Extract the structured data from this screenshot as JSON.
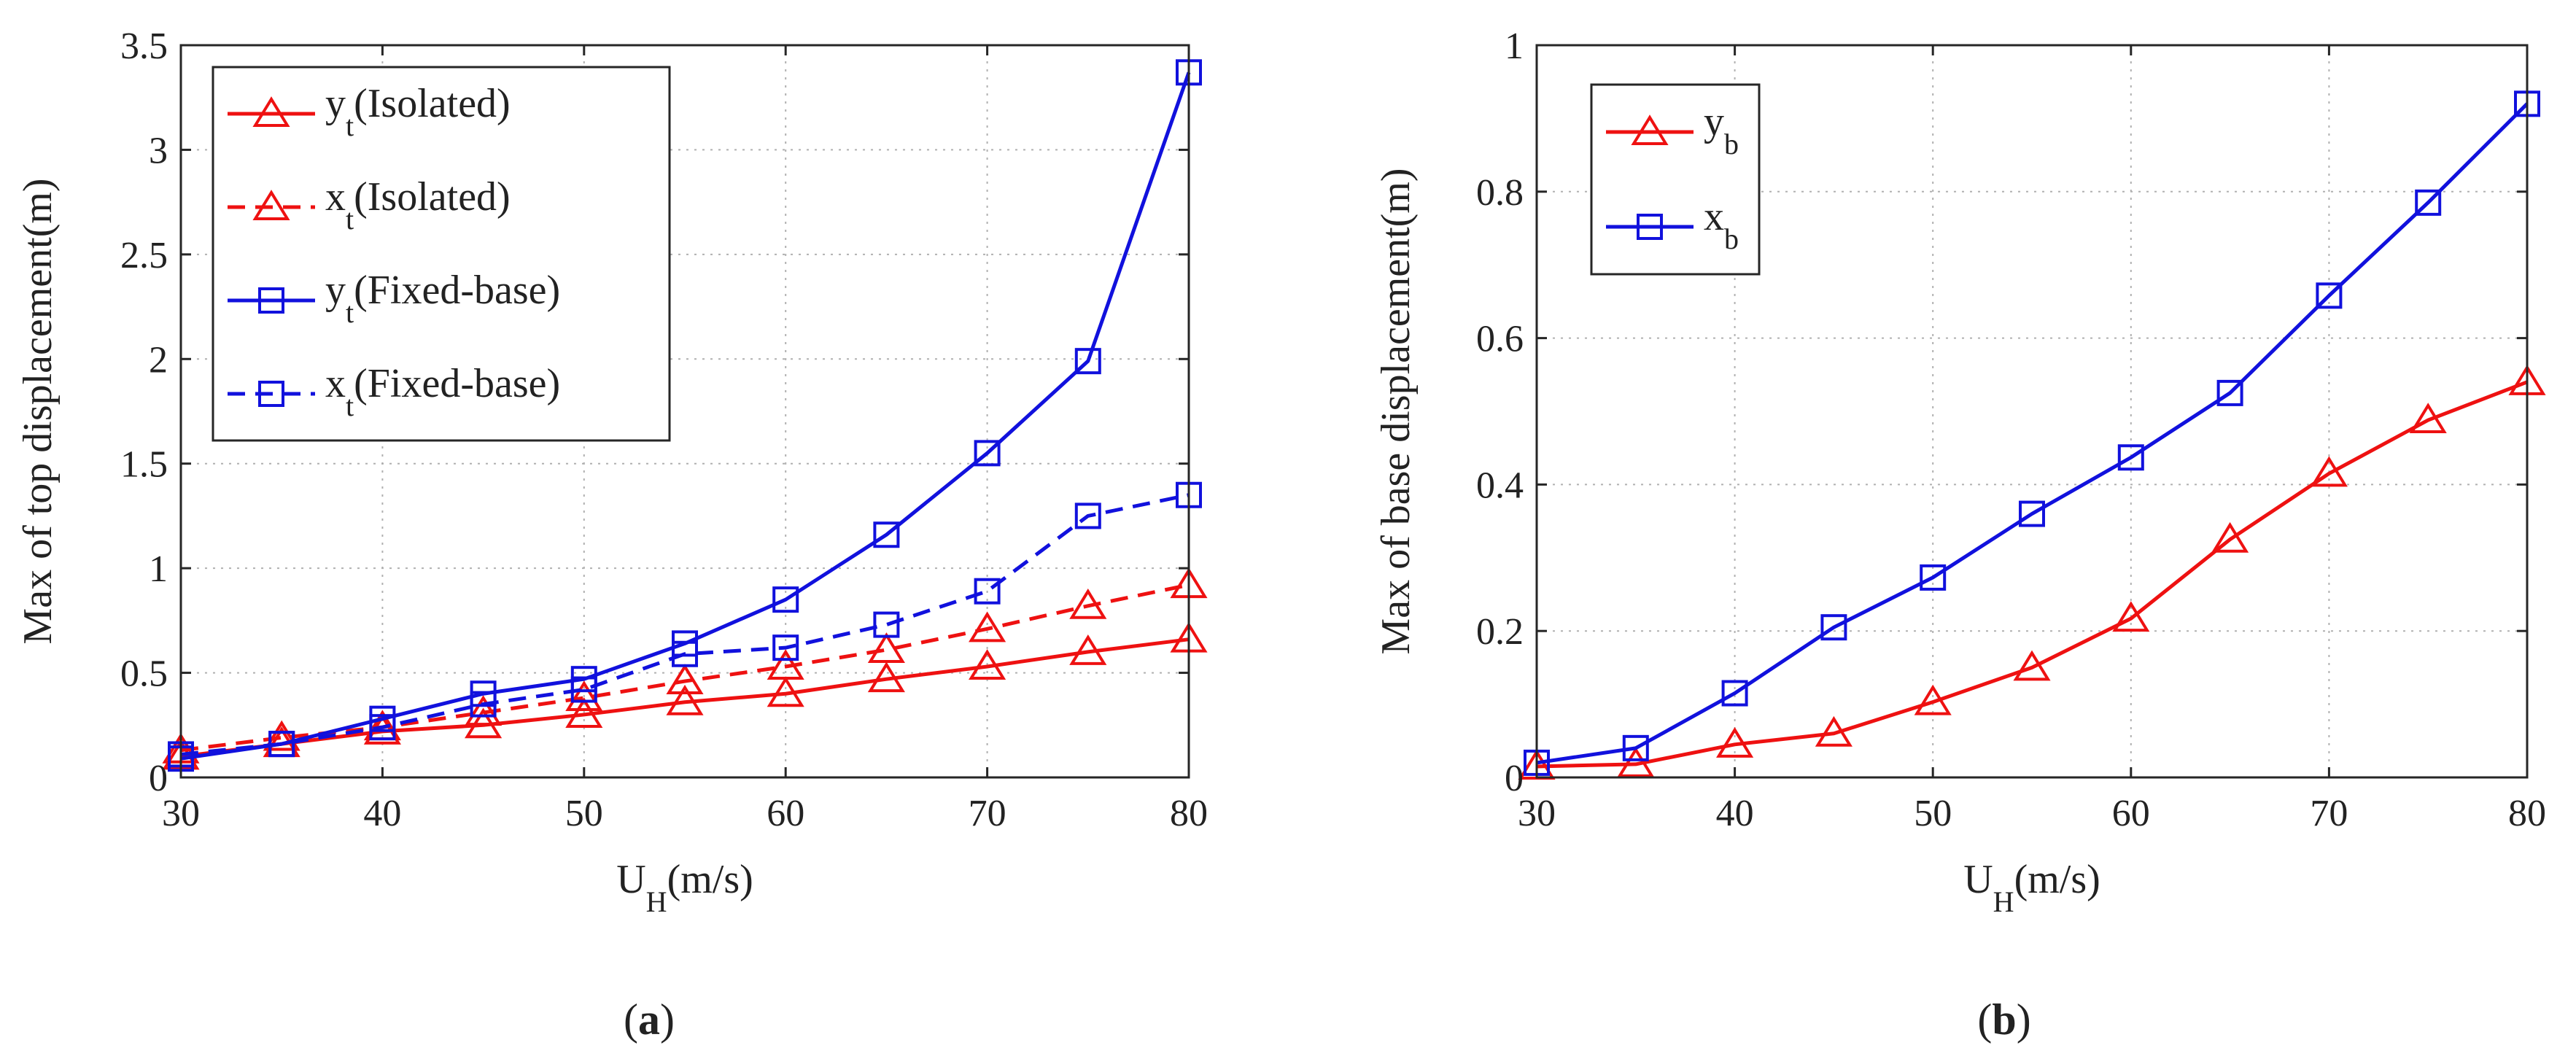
{
  "chart_data": [
    {
      "type": "line",
      "panel_label": "a",
      "xlabel": "U",
      "xlabel_sub": "H",
      "xlabel_rest": "(m/s)",
      "ylabel": "Max of top displacement(m)",
      "xlim": [
        30,
        80
      ],
      "ylim": [
        0,
        3.5
      ],
      "xticks": [
        30,
        40,
        50,
        60,
        70,
        80
      ],
      "xtick_labels": [
        "30",
        "40",
        "50",
        "60",
        "70",
        "80"
      ],
      "yticks": [
        0,
        0.5,
        1,
        1.5,
        2,
        2.5,
        3,
        3.5
      ],
      "ytick_labels": [
        "0",
        "0.5",
        "1",
        "1.5",
        "2",
        "2.5",
        "3",
        "3.5"
      ],
      "grid": true,
      "legend_position": "top-left",
      "x": [
        30,
        35,
        40,
        45,
        50,
        55,
        60,
        65,
        70,
        75,
        80
      ],
      "series": [
        {
          "name": "y_t(Isolated)",
          "legend_main": "y",
          "legend_sub": "t",
          "legend_rest": "(Isolated)",
          "color": "#ee1111",
          "dashed": false,
          "marker": "triangle",
          "values": [
            0.1,
            0.16,
            0.22,
            0.25,
            0.3,
            0.36,
            0.4,
            0.47,
            0.53,
            0.6,
            0.66
          ]
        },
        {
          "name": "x_t(Isolated)",
          "legend_main": "x",
          "legend_sub": "t",
          "legend_rest": "(Isolated)",
          "color": "#ee1111",
          "dashed": true,
          "marker": "triangle",
          "values": [
            0.13,
            0.19,
            0.24,
            0.31,
            0.38,
            0.46,
            0.53,
            0.61,
            0.71,
            0.82,
            0.92
          ]
        },
        {
          "name": "y_t(Fixed-base)",
          "legend_main": "y",
          "legend_sub": "t",
          "legend_rest": "(Fixed-base)",
          "color": "#1111dd",
          "dashed": false,
          "marker": "square",
          "values": [
            0.09,
            0.16,
            0.28,
            0.4,
            0.47,
            0.64,
            0.85,
            1.16,
            1.55,
            1.99,
            3.37
          ]
        },
        {
          "name": "x_t(Fixed-base)",
          "legend_main": "x",
          "legend_sub": "t",
          "legend_rest": "(Fixed-base)",
          "color": "#1111dd",
          "dashed": true,
          "marker": "square",
          "values": [
            0.11,
            0.16,
            0.24,
            0.35,
            0.42,
            0.59,
            0.62,
            0.73,
            0.89,
            1.25,
            1.35
          ]
        }
      ]
    },
    {
      "type": "line",
      "panel_label": "b",
      "xlabel": "U",
      "xlabel_sub": "H",
      "xlabel_rest": "(m/s)",
      "ylabel": "Max of base displacement(m)",
      "xlim": [
        30,
        80
      ],
      "ylim": [
        0,
        1
      ],
      "xticks": [
        30,
        40,
        50,
        60,
        70,
        80
      ],
      "xtick_labels": [
        "30",
        "40",
        "50",
        "60",
        "70",
        "80"
      ],
      "yticks": [
        0,
        0.2,
        0.4,
        0.6,
        0.8,
        1
      ],
      "ytick_labels": [
        "0",
        "0.2",
        "0.4",
        "0.6",
        "0.8",
        "1"
      ],
      "grid": true,
      "legend_position": "top-left",
      "x": [
        30,
        35,
        40,
        45,
        50,
        55,
        60,
        65,
        70,
        75,
        80
      ],
      "series": [
        {
          "name": "y_b",
          "legend_main": "y",
          "legend_sub": "b",
          "legend_rest": "",
          "color": "#ee1111",
          "dashed": false,
          "marker": "triangle",
          "values": [
            0.015,
            0.018,
            0.045,
            0.06,
            0.103,
            0.15,
            0.217,
            0.325,
            0.415,
            0.488,
            0.54
          ]
        },
        {
          "name": "x_b",
          "legend_main": "x",
          "legend_sub": "b",
          "legend_rest": "",
          "color": "#1111dd",
          "dashed": false,
          "marker": "square",
          "values": [
            0.02,
            0.04,
            0.115,
            0.205,
            0.273,
            0.36,
            0.437,
            0.525,
            0.658,
            0.785,
            0.92
          ]
        }
      ]
    }
  ]
}
